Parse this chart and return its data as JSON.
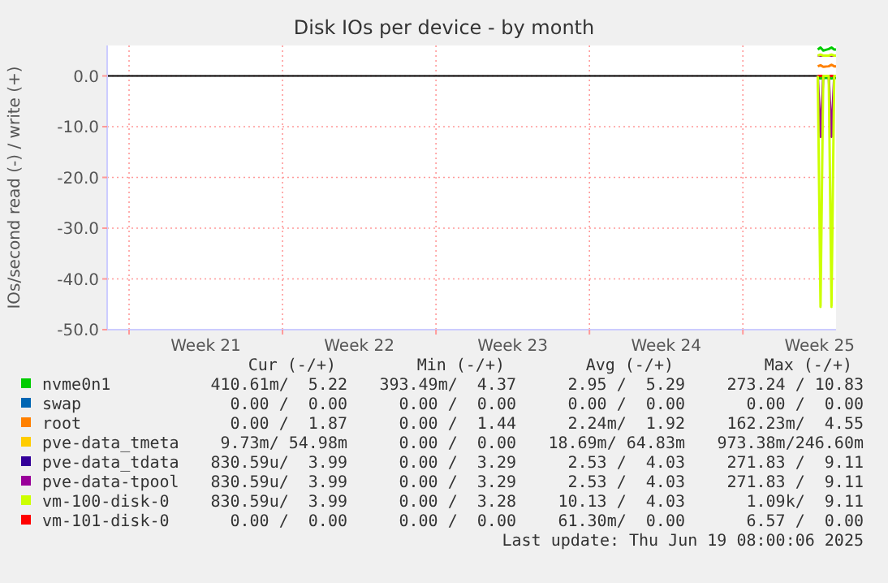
{
  "chart_data": {
    "type": "line",
    "title": "Disk IOs per device - by month",
    "ylabel": "IOs/second read (-) / write (+)",
    "xlim": [
      "2025-05-18T00:00",
      "2025-06-20T06:00"
    ],
    "xticks": [
      {
        "value": "2025-05-19T00:00",
        "label": null
      },
      {
        "value": "2025-05-22T12:00",
        "label": "Week 21"
      },
      {
        "value": "2025-05-26T00:00",
        "label": null
      },
      {
        "value": "2025-05-29T12:00",
        "label": "Week 22"
      },
      {
        "value": "2025-06-02T00:00",
        "label": null
      },
      {
        "value": "2025-06-05T12:00",
        "label": "Week 23"
      },
      {
        "value": "2025-06-09T00:00",
        "label": null
      },
      {
        "value": "2025-06-12T12:00",
        "label": "Week 24"
      },
      {
        "value": "2025-06-16T00:00",
        "label": null
      },
      {
        "value": "2025-06-19T12:00",
        "label": "Week 25"
      }
    ],
    "ylim": [
      -50,
      6
    ],
    "yticks": [
      {
        "value": 0,
        "label": "0.0"
      },
      {
        "value": -10,
        "label": "-10.0"
      },
      {
        "value": -20,
        "label": "-20.0"
      },
      {
        "value": -30,
        "label": "-30.0"
      },
      {
        "value": -40,
        "label": "-40.0"
      },
      {
        "value": -50,
        "label": "-50.0"
      }
    ],
    "grid": true,
    "legend": "bottom",
    "marker": "none",
    "line_style": "solid",
    "x": [
      "2025-06-19T10:00",
      "2025-06-19T13:00",
      "2025-06-19T16:00",
      "2025-06-19T22:00",
      "2025-06-20T01:00",
      "2025-06-20T04:00",
      "2025-06-20T06:00"
    ],
    "ref_lines": [
      {
        "axis": "y",
        "value": 0,
        "color": "#000000"
      }
    ],
    "series": [
      {
        "name": "nvme0n1",
        "color": "#00cc00",
        "values": [
          5.2,
          5.6,
          5.0,
          5.3,
          5.6,
          5.2,
          5.2
        ]
      },
      {
        "name": "swap",
        "color": "#0066b3",
        "values": [
          null,
          null,
          null,
          null,
          null,
          null,
          null
        ]
      },
      {
        "name": "root",
        "color": "#ff8000",
        "values": [
          1.9,
          2.1,
          1.8,
          1.9,
          2.2,
          1.9,
          1.9
        ]
      },
      {
        "name": "pve-data_tmeta",
        "color": "#ffcc00",
        "values": [
          null,
          null,
          null,
          null,
          null,
          null,
          null
        ]
      },
      {
        "name": "pve-data_tdata",
        "color": "#330099",
        "values": [
          null,
          null,
          null,
          null,
          null,
          null,
          null
        ]
      },
      {
        "name": "pve-data-tpool",
        "color": "#990099",
        "values": [
          4,
          4,
          4,
          4,
          4,
          4,
          4
        ]
      },
      {
        "name": "vm-100-disk-0",
        "color": "#ccff00",
        "values": [
          4,
          4.2,
          4,
          4,
          4.2,
          4,
          4
        ]
      },
      {
        "name": "vm-101-disk-0",
        "color": "#ff0000",
        "values": [
          0,
          0,
          0,
          0,
          0,
          0,
          0
        ]
      },
      {
        "color": "#00cc00",
        "values": [
          -0.4,
          -0.5,
          -0.4,
          -0.4,
          -0.5,
          -0.4,
          -0.4
        ]
      },
      {
        "color": "#330099",
        "values": [
          null,
          null,
          null,
          null,
          null,
          null,
          null
        ]
      },
      {
        "color": "#990099",
        "values": [
          0,
          -12,
          0,
          0,
          -12,
          0,
          0
        ]
      },
      {
        "color": "#ccff00",
        "values": [
          0,
          -45.5,
          0,
          0,
          -45.5,
          0,
          0
        ]
      }
    ],
    "annotations": [
      "Cur (-/+)",
      "Min (-/+)",
      "Avg (-/+)",
      "Max (-/+)",
      "410.61m/  5.22",
      "393.49m/  4.37",
      "2.95 /  5.29",
      "273.24 / 10.83",
      "0.00 /  0.00",
      "0.00 /  0.00",
      "0.00 /  0.00",
      "0.00 /  0.00",
      "0.00 /  1.87",
      "0.00 /  1.44",
      "2.24m/  1.92",
      "162.23m/  4.55",
      "9.73m/ 54.98m",
      "0.00 /  0.00",
      "18.69m/ 64.83m",
      "973.38m/246.60m",
      "830.59u/  3.99",
      "0.00 /  3.29",
      "2.53 /  4.03",
      "271.83 /  9.11",
      "830.59u/  3.99",
      "0.00 /  3.29",
      "2.53 /  4.03",
      "271.83 /  9.11",
      "830.59u/  3.99",
      "0.00 /  3.28",
      "10.13 /  4.03",
      "1.09k/  9.11",
      "0.00 /  0.00",
      "0.00 /  0.00",
      "61.30m/  0.00",
      "6.57 /  0.00",
      "Last update: Thu Jun 19 08:00:06 2025"
    ]
  }
}
